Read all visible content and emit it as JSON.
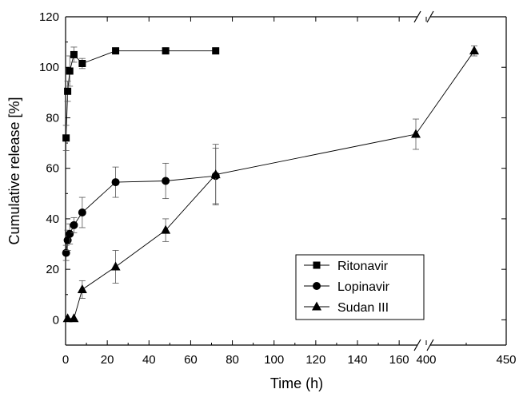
{
  "chart_data": {
    "type": "line",
    "xlabel": "Time (h)",
    "ylabel": "Cumulative release [%]",
    "x_axis_break": {
      "from": 168,
      "to": 400
    },
    "xlim": [
      0,
      450
    ],
    "ylim": [
      -10,
      120
    ],
    "x_ticks": [
      0,
      20,
      40,
      60,
      80,
      100,
      120,
      140,
      160,
      400,
      450
    ],
    "x_tick_labels": [
      "0",
      "20",
      "40",
      "60",
      "80",
      "100",
      "120",
      "140",
      "160",
      "400",
      "450"
    ],
    "y_ticks": [
      0,
      20,
      40,
      60,
      80,
      100,
      120
    ],
    "y_tick_labels": [
      "0",
      "20",
      "40",
      "60",
      "80",
      "100",
      "120"
    ],
    "legend_position": "bottom-right",
    "grid": false,
    "series": [
      {
        "name": "Ritonavir",
        "marker": "square",
        "x": [
          0.25,
          1,
          2,
          4,
          8,
          24,
          48,
          72
        ],
        "y": [
          72,
          90.5,
          98.5,
          105,
          101.5,
          106.5,
          106.5,
          106.5
        ],
        "err": [
          5,
          4,
          6,
          3,
          2,
          0,
          0,
          0
        ]
      },
      {
        "name": "Lopinavir",
        "marker": "circle",
        "x": [
          0.25,
          1,
          2,
          4,
          8,
          24,
          48,
          72
        ],
        "y": [
          26.5,
          31.5,
          34,
          37.5,
          42.5,
          54.5,
          55,
          57
        ],
        "err": [
          3,
          4,
          4,
          3,
          6,
          6,
          7,
          11
        ]
      },
      {
        "name": "Sudan III",
        "marker": "triangle",
        "x": [
          1,
          4,
          8,
          24,
          48,
          72,
          168,
          430
        ],
        "y": [
          0.5,
          0.5,
          12,
          21,
          35.5,
          57.5,
          73.5,
          106.5
        ],
        "err": [
          0,
          0,
          3.5,
          6.5,
          4.5,
          12,
          6,
          2
        ]
      }
    ]
  }
}
